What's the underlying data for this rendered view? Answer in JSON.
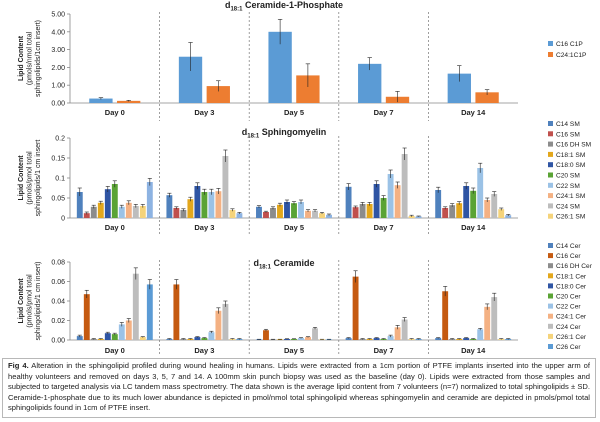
{
  "caption": {
    "label": "Fig 4.",
    "text": "Alteration in the sphingolipid profiled during wound healing in humans. Lipids were extracted from a 1cm portion of PTFE implants inserted into the upper arm of healthy volunteers and removed on days 3, 5, 7 and 14. A 100mm skin punch biopsy was used as the baseline (day 0). Lipids were extracted from those samples and subjected to targeted analysis via LC tandem mass spectrometry. The data shown is the average lipid content from 7 volunteers (n=7) normalized to total sphingolipids ± SD. Ceramide-1-phosphate due to its much lower abundance is depicted in pmol/nmol total sphingolipid whereas sphingomyelin and ceramide are depicted in pmols/pmol total sphingolipids found in 1cm of PTFE insert."
  },
  "chart_data": [
    {
      "type": "bar",
      "title_sub": "d18:1",
      "title": "Ceramide-1-Phosphate",
      "ylabel_lines": [
        "Lipid Content",
        "(pmols/nmol total",
        "sphingolipids/1cm insert)"
      ],
      "categories": [
        "Day 0",
        "Day 3",
        "Day 5",
        "Day 7",
        "Day 14"
      ],
      "ylim": [
        0,
        5
      ],
      "yticks": [
        "0.00",
        "1.00",
        "2.00",
        "3.00",
        "4.00",
        "5.00"
      ],
      "series": [
        {
          "name": "C16 C1P",
          "color": "#5b9bd5",
          "values": [
            0.25,
            2.6,
            4.0,
            2.2,
            1.65
          ],
          "errors": [
            0.05,
            0.8,
            0.7,
            0.35,
            0.45
          ]
        },
        {
          "name": "C24:1C1P",
          "color": "#ed7d31",
          "values": [
            0.12,
            0.95,
            1.55,
            0.35,
            0.6
          ],
          "errors": [
            0.03,
            0.3,
            0.65,
            0.3,
            0.15
          ]
        }
      ]
    },
    {
      "type": "bar",
      "title_sub": "d18:1",
      "title": "Sphingomyelin",
      "ylabel_lines": [
        "Lipid Content",
        "(pmols/pmol total",
        "sphingolipids/1 cm insert"
      ],
      "categories": [
        "Day 0",
        "Day 3",
        "Day 5",
        "Day 7",
        "Day 14"
      ],
      "ylim": [
        0,
        0.2
      ],
      "yticks": [
        "0",
        "0.05",
        "0.1",
        "0.15",
        "0.2"
      ],
      "series": [
        {
          "name": "C14 SM",
          "color": "#4f81bd",
          "values": [
            0.065,
            0.057,
            0.028,
            0.078,
            0.07
          ],
          "errors": [
            0.01,
            0.005,
            0.003,
            0.008,
            0.007
          ]
        },
        {
          "name": "C16 SM",
          "color": "#c0504d",
          "values": [
            0.012,
            0.025,
            0.015,
            0.027,
            0.025
          ],
          "errors": [
            0.003,
            0.003,
            0.002,
            0.003,
            0.003
          ]
        },
        {
          "name": "C16 DH SM",
          "color": "#8c8c8c",
          "values": [
            0.028,
            0.02,
            0.025,
            0.035,
            0.032
          ],
          "errors": [
            0.004,
            0.003,
            0.003,
            0.004,
            0.004
          ]
        },
        {
          "name": "C18:1 SM",
          "color": "#e3a71c",
          "values": [
            0.038,
            0.047,
            0.033,
            0.035,
            0.037
          ],
          "errors": [
            0.004,
            0.005,
            0.004,
            0.004,
            0.004
          ]
        },
        {
          "name": "C18:0 SM",
          "color": "#2f55a4",
          "values": [
            0.072,
            0.08,
            0.04,
            0.085,
            0.08
          ],
          "errors": [
            0.007,
            0.008,
            0.005,
            0.008,
            0.008
          ]
        },
        {
          "name": "C20 SM",
          "color": "#5aa335",
          "values": [
            0.085,
            0.065,
            0.037,
            0.05,
            0.068
          ],
          "errors": [
            0.008,
            0.007,
            0.004,
            0.006,
            0.007
          ]
        },
        {
          "name": "C22 SM",
          "color": "#9bc2e6",
          "values": [
            0.028,
            0.065,
            0.04,
            0.11,
            0.125
          ],
          "errors": [
            0.004,
            0.007,
            0.005,
            0.01,
            0.012
          ]
        },
        {
          "name": "C24:1 SM",
          "color": "#f4b183",
          "values": [
            0.038,
            0.067,
            0.018,
            0.082,
            0.045
          ],
          "errors": [
            0.005,
            0.007,
            0.003,
            0.008,
            0.005
          ]
        },
        {
          "name": "C24 SM",
          "color": "#bdbdbd",
          "values": [
            0.03,
            0.155,
            0.018,
            0.16,
            0.06
          ],
          "errors": [
            0.004,
            0.015,
            0.003,
            0.015,
            0.006
          ]
        },
        {
          "name": "C26:1 SM",
          "color": "#f5d37a",
          "values": [
            0.03,
            0.02,
            0.012,
            0.005,
            0.022
          ],
          "errors": [
            0.004,
            0.003,
            0.002,
            0.002,
            0.003
          ]
        },
        {
          "name": "",
          "color": "#8db3e2",
          "values": [
            0.09,
            0.012,
            0.008,
            0.004,
            0.007
          ],
          "errors": [
            0.009,
            0.002,
            0.002,
            0.001,
            0.002
          ]
        }
      ]
    },
    {
      "type": "bar",
      "title_sub": "d18:1",
      "title": "Ceramide",
      "ylabel_lines": [
        "Lipid Content",
        "(pmols/pmol total",
        "sphingolipids/1 cm insert)"
      ],
      "categories": [
        "Day 0",
        "Day 3",
        "Day 5",
        "Day 7",
        "Day 14"
      ],
      "ylim": [
        0,
        0.08
      ],
      "yticks": [
        "0.00",
        "0.02",
        "0.04",
        "0.06",
        "0.08"
      ],
      "series": [
        {
          "name": "C14 Cer",
          "color": "#4f81bd",
          "values": [
            0.004,
            0.001,
            0.0005,
            0.002,
            0.002
          ],
          "errors": [
            0.001,
            0.0005,
            0.0003,
            0.0005,
            0.0005
          ]
        },
        {
          "name": "C16 Cer",
          "color": "#c55a11",
          "values": [
            0.047,
            0.057,
            0.01,
            0.065,
            0.05
          ],
          "errors": [
            0.004,
            0.005,
            0.001,
            0.006,
            0.005
          ]
        },
        {
          "name": "C16 DH Cer",
          "color": "#8c8c8c",
          "values": [
            0.001,
            0.001,
            0.0005,
            0.001,
            0.001
          ],
          "errors": [
            0.0005,
            0.0005,
            0.0003,
            0.0005,
            0.0005
          ]
        },
        {
          "name": "C18:1 Cer",
          "color": "#e3a71c",
          "values": [
            0.001,
            0.001,
            0.0005,
            0.001,
            0.001
          ],
          "errors": [
            0.0005,
            0.0005,
            0.0003,
            0.0005,
            0.0005
          ]
        },
        {
          "name": "C18:0 Cer",
          "color": "#2f55a4",
          "values": [
            0.007,
            0.003,
            0.001,
            0.002,
            0.002
          ],
          "errors": [
            0.001,
            0.0005,
            0.0003,
            0.0005,
            0.0005
          ]
        },
        {
          "name": "C20 Cer",
          "color": "#5aa335",
          "values": [
            0.006,
            0.002,
            0.001,
            0.001,
            0.001
          ],
          "errors": [
            0.001,
            0.0005,
            0.0003,
            0.0005,
            0.0005
          ]
        },
        {
          "name": "C22 Cer",
          "color": "#9bc2e6",
          "values": [
            0.016,
            0.008,
            0.002,
            0.004,
            0.011
          ],
          "errors": [
            0.002,
            0.001,
            0.0005,
            0.001,
            0.001
          ]
        },
        {
          "name": "C24:1 Cer",
          "color": "#f4b183",
          "values": [
            0.02,
            0.03,
            0.003,
            0.013,
            0.034
          ],
          "errors": [
            0.002,
            0.003,
            0.0005,
            0.002,
            0.003
          ]
        },
        {
          "name": "C24 Cer",
          "color": "#bdbdbd",
          "values": [
            0.068,
            0.037,
            0.012,
            0.021,
            0.044
          ],
          "errors": [
            0.006,
            0.003,
            0.001,
            0.002,
            0.004
          ]
        },
        {
          "name": "C26:1 Cer",
          "color": "#f5d37a",
          "values": [
            0.003,
            0.001,
            0.0005,
            0.001,
            0.001
          ],
          "errors": [
            0.0005,
            0.0005,
            0.0003,
            0.0005,
            0.0005
          ]
        },
        {
          "name": "C26 Cer",
          "color": "#5b9bd5",
          "values": [
            0.057,
            0.001,
            0.0005,
            0.001,
            0.001
          ],
          "errors": [
            0.005,
            0.0005,
            0.0003,
            0.0005,
            0.0005
          ]
        }
      ]
    }
  ]
}
